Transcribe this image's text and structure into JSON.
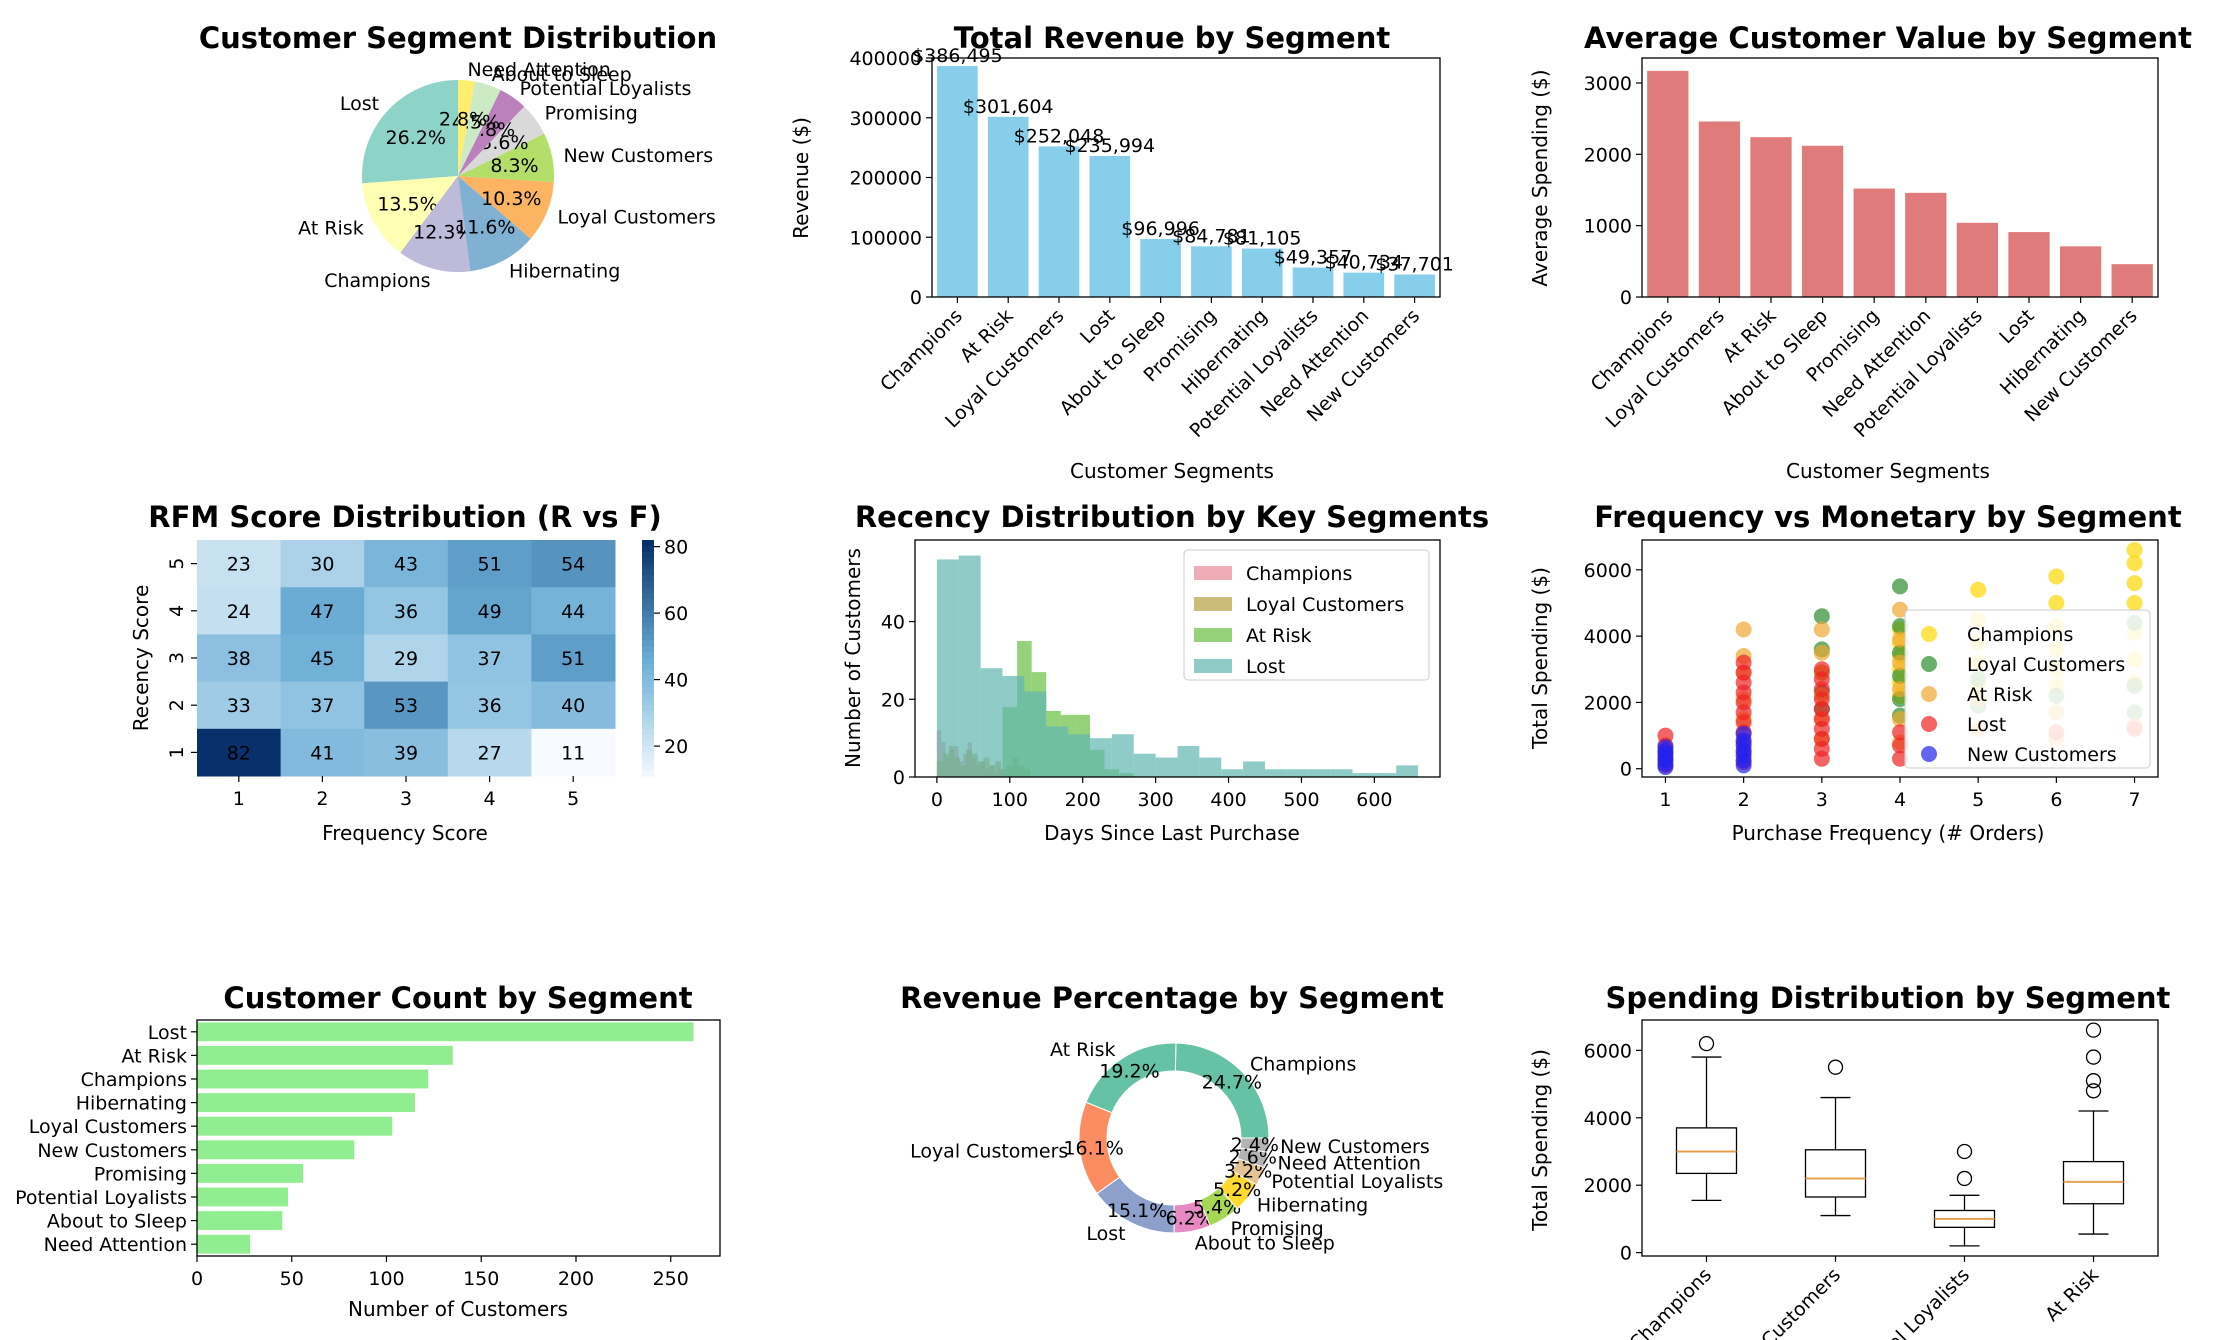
{
  "chart_data": [
    {
      "id": "pie",
      "type": "pie",
      "title": "Customer Segment Distribution",
      "labels": [
        "Lost",
        "At Risk",
        "Champions",
        "Hibernating",
        "Loyal Customers",
        "New Customers",
        "Promising",
        "Potential Loyalists",
        "About to Sleep",
        "Need Attention"
      ],
      "values": [
        26.2,
        13.5,
        12.3,
        11.6,
        10.3,
        8.3,
        5.6,
        4.8,
        4.5,
        2.8
      ],
      "pct_labels": [
        "26.2%",
        "13.5%",
        "12.3%",
        "11.6%",
        "10.3%",
        "8.3%",
        "5.6%",
        "4.8%",
        "4.5%",
        "2.8%"
      ],
      "colors": [
        "#8dd3c7",
        "#ffffb3",
        "#bebada",
        "#80b1d3",
        "#fdb462",
        "#b3de69",
        "#d9d9d9",
        "#bc80bd",
        "#ccebc5",
        "#ffed6f"
      ]
    },
    {
      "id": "revenue",
      "type": "bar",
      "title": "Total Revenue by Segment",
      "xlabel": "Customer Segments",
      "ylabel": "Revenue ($)",
      "categories": [
        "Champions",
        "At Risk",
        "Loyal Customers",
        "Lost",
        "About to Sleep",
        "Promising",
        "Hibernating",
        "Potential Loyalists",
        "Need Attention",
        "New Customers"
      ],
      "values": [
        386495,
        301604,
        252048,
        235994,
        96996,
        84781,
        81105,
        49357,
        40734,
        37701
      ],
      "value_labels": [
        "$386,495",
        "$301,604",
        "$252,048",
        "$235,994",
        "$96,996",
        "$84,781",
        "$81,105",
        "$49,357",
        "$40,734",
        "$37,701"
      ],
      "ylim": [
        0,
        400000
      ],
      "yticks": [
        "0",
        "100000",
        "200000",
        "300000",
        "400000"
      ],
      "color": "#87ceeb"
    },
    {
      "id": "avgvalue",
      "type": "bar",
      "title": "Average Customer Value by Segment",
      "xlabel": "Customer Segments",
      "ylabel": "Average Spending ($)",
      "categories": [
        "Champions",
        "Loyal Customers",
        "At Risk",
        "About to Sleep",
        "Promising",
        "Need Attention",
        "Potential Loyalists",
        "Lost",
        "Hibernating",
        "New Customers"
      ],
      "values": [
        3170,
        2460,
        2240,
        2120,
        1520,
        1460,
        1040,
        910,
        710,
        460
      ],
      "ylim": [
        0,
        3350
      ],
      "yticks": [
        "0",
        "1000",
        "2000",
        "3000"
      ],
      "color": "#e07b7b"
    },
    {
      "id": "heatmap",
      "type": "heatmap",
      "title": "RFM Score Distribution (R vs F)",
      "xlabel": "Frequency Score",
      "ylabel": "Recency Score",
      "x": [
        "1",
        "2",
        "3",
        "4",
        "5"
      ],
      "y": [
        "5",
        "4",
        "3",
        "2",
        "1"
      ],
      "values": [
        [
          23,
          30,
          43,
          51,
          54
        ],
        [
          24,
          47,
          36,
          49,
          44
        ],
        [
          38,
          45,
          29,
          37,
          51
        ],
        [
          33,
          37,
          53,
          36,
          40
        ],
        [
          82,
          41,
          39,
          27,
          11
        ]
      ],
      "vmin": 11,
      "vmax": 82,
      "colorbar_ticks": [
        "20",
        "40",
        "60",
        "80"
      ]
    },
    {
      "id": "recency",
      "type": "histogram",
      "title": "Recency Distribution by Key Segments",
      "xlabel": "Days Since Last Purchase",
      "ylabel": "Number of Customers",
      "xlim": [
        -30,
        690
      ],
      "ylim": [
        0,
        61
      ],
      "xticks": [
        "0",
        "100",
        "200",
        "300",
        "400",
        "500",
        "600"
      ],
      "yticks": [
        "0",
        "20",
        "40"
      ],
      "series": [
        {
          "name": "Champions",
          "color": "#e88a9a",
          "bin_width": 6,
          "start": 0,
          "counts": [
            12,
            9,
            5,
            7,
            8,
            4,
            6,
            9,
            5,
            3,
            4,
            2,
            3,
            1,
            2
          ]
        },
        {
          "name": "Loyal Customers",
          "color": "#b5a040",
          "bin_width": 8,
          "start": 0,
          "counts": [
            4,
            6,
            8,
            5,
            3,
            7,
            6,
            4,
            5,
            3,
            4,
            2,
            3,
            5,
            3,
            2
          ]
        },
        {
          "name": "At Risk",
          "color": "#6abf40",
          "bin_width": 20,
          "start": 90,
          "counts": [
            18,
            35,
            27,
            17,
            16,
            16,
            7,
            2,
            1
          ]
        },
        {
          "name": "Lost",
          "color": "#5fb7b0",
          "bin_width": 30,
          "start": 0,
          "counts": [
            56,
            57,
            28,
            26,
            22,
            13,
            11,
            10,
            11,
            6,
            5,
            8,
            5,
            2,
            4,
            2,
            2,
            2,
            2,
            1,
            1,
            3
          ]
        }
      ]
    },
    {
      "id": "scatter",
      "type": "scatter",
      "title": "Frequency vs Monetary by Segment",
      "xlabel": "Purchase Frequency (# Orders)",
      "ylabel": "Total Spending ($)",
      "xlim": [
        0.7,
        7.3
      ],
      "ylim": [
        -250,
        6900
      ],
      "xticks": [
        "1",
        "2",
        "3",
        "4",
        "5",
        "6",
        "7"
      ],
      "yticks": [
        "0",
        "2000",
        "4000",
        "6000"
      ],
      "series": [
        {
          "name": "Champions",
          "color": "#ffd700",
          "points": [
            [
              4,
              2200
            ],
            [
              4,
              2600
            ],
            [
              4,
              3000
            ],
            [
              4,
              3400
            ],
            [
              4,
              3800
            ],
            [
              4,
              4200
            ],
            [
              5,
              2500
            ],
            [
              5,
              3200
            ],
            [
              5,
              3800
            ],
            [
              5,
              4500
            ],
            [
              5,
              5400
            ],
            [
              6,
              2500
            ],
            [
              6,
              3000
            ],
            [
              6,
              3600
            ],
            [
              6,
              4300
            ],
            [
              6,
              5000
            ],
            [
              6,
              5800
            ],
            [
              7,
              2600
            ],
            [
              7,
              3300
            ],
            [
              7,
              4100
            ],
            [
              7,
              5000
            ],
            [
              7,
              5600
            ],
            [
              7,
              6200
            ],
            [
              7,
              6600
            ]
          ]
        },
        {
          "name": "Loyal Customers",
          "color": "#2e8b2e",
          "points": [
            [
              3,
              1800
            ],
            [
              3,
              2300
            ],
            [
              3,
              2900
            ],
            [
              3,
              3600
            ],
            [
              3,
              4600
            ],
            [
              4,
              1600
            ],
            [
              4,
              2100
            ],
            [
              4,
              2800
            ],
            [
              4,
              3500
            ],
            [
              4,
              4300
            ],
            [
              4,
              5500
            ],
            [
              5,
              1900
            ],
            [
              5,
              2700
            ],
            [
              6,
              2200
            ],
            [
              7,
              1700
            ],
            [
              7,
              2500
            ],
            [
              7,
              4400
            ]
          ]
        },
        {
          "name": "At Risk",
          "color": "#f0a830",
          "points": [
            [
              2,
              1500
            ],
            [
              2,
              2100
            ],
            [
              2,
              2900
            ],
            [
              2,
              3400
            ],
            [
              2,
              4200
            ],
            [
              3,
              900
            ],
            [
              3,
              1500
            ],
            [
              3,
              2200
            ],
            [
              3,
              2900
            ],
            [
              3,
              3500
            ],
            [
              3,
              4200
            ],
            [
              4,
              800
            ],
            [
              4,
              1500
            ],
            [
              4,
              2400
            ],
            [
              4,
              3200
            ],
            [
              4,
              3900
            ],
            [
              4,
              4800
            ],
            [
              5,
              1200
            ],
            [
              5,
              2100
            ],
            [
              6,
              900
            ],
            [
              6,
              1700
            ],
            [
              7,
              1300
            ]
          ]
        },
        {
          "name": "Lost",
          "color": "#ee2222",
          "points": [
            [
              1,
              100
            ],
            [
              1,
              300
            ],
            [
              1,
              500
            ],
            [
              1,
              700
            ],
            [
              1,
              1000
            ],
            [
              2,
              200
            ],
            [
              2,
              500
            ],
            [
              2,
              800
            ],
            [
              2,
              1100
            ],
            [
              2,
              1400
            ],
            [
              2,
              1700
            ],
            [
              2,
              2000
            ],
            [
              2,
              2300
            ],
            [
              2,
              2600
            ],
            [
              2,
              2900
            ],
            [
              2,
              3200
            ],
            [
              3,
              300
            ],
            [
              3,
              600
            ],
            [
              3,
              900
            ],
            [
              3,
              1200
            ],
            [
              3,
              1500
            ],
            [
              3,
              1800
            ],
            [
              3,
              2100
            ],
            [
              3,
              2400
            ],
            [
              3,
              2700
            ],
            [
              3,
              3000
            ],
            [
              4,
              300
            ],
            [
              4,
              700
            ],
            [
              4,
              1100
            ],
            [
              6,
              1100
            ],
            [
              7,
              1200
            ]
          ]
        },
        {
          "name": "New Customers",
          "color": "#2222ee",
          "points": [
            [
              1,
              50
            ],
            [
              1,
              150
            ],
            [
              1,
              250
            ],
            [
              1,
              350
            ],
            [
              1,
              450
            ],
            [
              1,
              550
            ],
            [
              1,
              650
            ],
            [
              2,
              100
            ],
            [
              2,
              250
            ],
            [
              2,
              400
            ],
            [
              2,
              550
            ],
            [
              2,
              700
            ],
            [
              2,
              850
            ],
            [
              2,
              1050
            ]
          ]
        }
      ]
    },
    {
      "id": "count",
      "type": "bar",
      "orientation": "horizontal",
      "title": "Customer Count by Segment",
      "xlabel": "Number of Customers",
      "categories": [
        "Lost",
        "At Risk",
        "Champions",
        "Hibernating",
        "Loyal Customers",
        "New Customers",
        "Promising",
        "Potential Loyalists",
        "About to Sleep",
        "Need Attention"
      ],
      "values": [
        262,
        135,
        122,
        115,
        103,
        83,
        56,
        48,
        45,
        28
      ],
      "xlim": [
        0,
        276
      ],
      "xticks": [
        "0",
        "50",
        "100",
        "150",
        "200",
        "250"
      ],
      "color": "#90ee90"
    },
    {
      "id": "donut",
      "type": "pie",
      "title": "Revenue Percentage by Segment",
      "labels": [
        "Champions",
        "At Risk",
        "Loyal Customers",
        "Lost",
        "About to Sleep",
        "Promising",
        "Hibernating",
        "Potential Loyalists",
        "Need Attention",
        "New Customers"
      ],
      "values": [
        24.7,
        19.2,
        16.1,
        15.1,
        6.2,
        5.4,
        5.2,
        3.2,
        2.6,
        2.4
      ],
      "pct_labels": [
        "24.7%",
        "19.2%",
        "16.1%",
        "15.1%",
        "6.2%",
        "5.4%",
        "5.2%",
        "3.2%",
        "2.6%",
        "2.4%"
      ],
      "colors": [
        "#66c2a5",
        "#66c2a5",
        "#fc8d62",
        "#8da0cb",
        "#e78ac3",
        "#a6d854",
        "#ffd92f",
        "#e5c494",
        "#b3b3b3",
        "#b3b3b3"
      ]
    },
    {
      "id": "boxplot",
      "type": "box",
      "title": "Spending Distribution by Segment",
      "ylabel": "Total Spending ($)",
      "categories": [
        "Champions",
        "Loyal Customers",
        "Potential Loyalists",
        "At Risk"
      ],
      "boxes": [
        {
          "whisker_low": 1550,
          "q1": 2350,
          "median": 3000,
          "q3": 3700,
          "whisker_high": 5800,
          "fliers": [
            6200
          ]
        },
        {
          "whisker_low": 1100,
          "q1": 1650,
          "median": 2200,
          "q3": 3050,
          "whisker_high": 4600,
          "fliers": [
            5500
          ]
        },
        {
          "whisker_low": 200,
          "q1": 750,
          "median": 1000,
          "q3": 1250,
          "whisker_high": 1700,
          "fliers": [
            2200,
            3000
          ]
        },
        {
          "whisker_low": 550,
          "q1": 1450,
          "median": 2100,
          "q3": 2700,
          "whisker_high": 4200,
          "fliers": [
            4800,
            5100,
            5800,
            6600
          ]
        }
      ],
      "ylim": [
        -100,
        6900
      ],
      "yticks": [
        "0",
        "2000",
        "4000",
        "6000"
      ]
    }
  ]
}
